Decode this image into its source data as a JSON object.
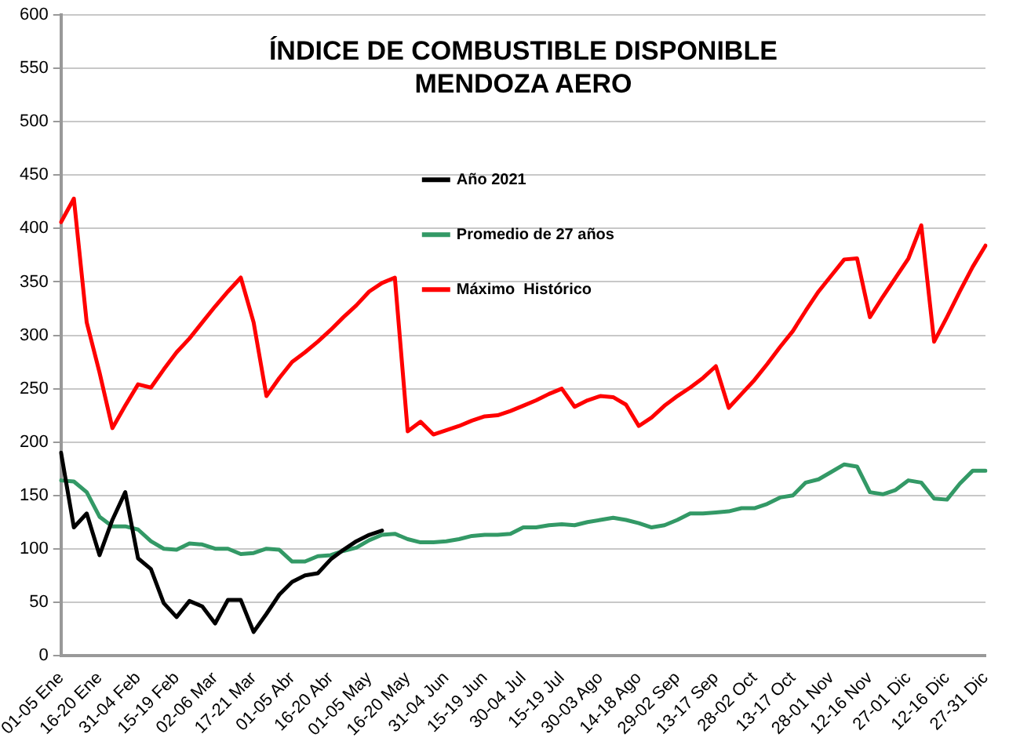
{
  "chart_data": {
    "type": "line",
    "title": "ÍNDICE DE COMBUSTIBLE DISPONIBLE\nMENDOZA AERO",
    "categories": [
      "01-05 Ene",
      null,
      null,
      "16-20 Ene",
      null,
      null,
      "31-04 Feb",
      null,
      null,
      "15-19 Feb",
      null,
      null,
      "02-06 Mar",
      null,
      null,
      "17-21 Mar",
      null,
      null,
      "01-05 Abr",
      null,
      null,
      "16-20 Abr",
      null,
      null,
      "01-05 May",
      null,
      null,
      "16-20 May",
      null,
      null,
      "31-04 Jun",
      null,
      null,
      "15-19 Jun",
      null,
      null,
      "30-04 Jul",
      null,
      null,
      "15-19 Jul",
      null,
      null,
      "30-03 Ago",
      null,
      null,
      "14-18 Ago",
      null,
      null,
      "29-02 Sep",
      null,
      null,
      "13-17 Sep",
      null,
      null,
      "28-02 Oct",
      null,
      null,
      "13-17 Oct",
      null,
      null,
      "28-01 Nov",
      null,
      null,
      "12-16 Nov",
      null,
      null,
      "27-01 Dic",
      null,
      null,
      "12-16 Dic",
      null,
      null,
      "27-31 Dic"
    ],
    "series": [
      {
        "name": "Año 2021",
        "color": "#000000",
        "values": [
          190,
          120,
          133,
          94,
          127,
          153,
          91,
          81,
          49,
          36,
          51,
          46,
          30,
          52,
          52,
          22,
          39,
          57,
          69,
          75,
          77,
          90,
          99,
          107,
          113,
          117,
          null,
          null,
          null,
          null,
          null,
          null,
          null,
          null,
          null,
          null,
          null,
          null,
          null,
          null,
          null,
          null,
          null,
          null,
          null,
          null,
          null,
          null,
          null,
          null,
          null,
          null,
          null,
          null,
          null,
          null,
          null,
          null,
          null,
          null,
          null,
          null,
          null,
          null,
          null,
          null,
          null,
          null,
          null,
          null,
          null,
          null,
          null
        ]
      },
      {
        "name": "Promedio de 27 años",
        "color": "#339966",
        "values": [
          164,
          163,
          153,
          130,
          121,
          121,
          118,
          107,
          100,
          99,
          105,
          104,
          100,
          100,
          95,
          96,
          100,
          99,
          88,
          88,
          93,
          94,
          98,
          101,
          108,
          113,
          114,
          109,
          106,
          106,
          107,
          109,
          112,
          113,
          113,
          114,
          120,
          120,
          122,
          123,
          122,
          125,
          127,
          129,
          127,
          124,
          120,
          122,
          127,
          133,
          133,
          134,
          135,
          138,
          138,
          142,
          148,
          150,
          162,
          165,
          172,
          179,
          177,
          153,
          151,
          155,
          164,
          162,
          147,
          146,
          161,
          173,
          173
        ]
      },
      {
        "name": "Máximo  Histórico",
        "color": "#ff0000",
        "values": [
          406,
          428,
          312,
          265,
          213,
          234,
          254,
          251,
          268,
          284,
          297,
          312,
          327,
          341,
          354,
          312,
          243,
          260,
          275,
          284,
          294,
          305,
          317,
          328,
          341,
          349,
          354,
          210,
          219,
          207,
          211,
          215,
          220,
          224,
          225,
          229,
          234,
          239,
          245,
          250,
          233,
          239,
          243,
          242,
          235,
          215,
          223,
          234,
          243,
          251,
          260,
          271,
          232,
          245,
          258,
          273,
          289,
          304,
          323,
          341,
          356,
          371,
          372,
          317,
          336,
          354,
          372,
          403,
          294,
          317,
          341,
          364,
          384
        ]
      }
    ],
    "ylim": [
      0,
      600
    ],
    "yticks": [
      0,
      50,
      100,
      150,
      200,
      250,
      300,
      350,
      400,
      450,
      500,
      550,
      600
    ],
    "grid": "y",
    "legend": "top",
    "marker": "none",
    "line_style": "solid"
  }
}
